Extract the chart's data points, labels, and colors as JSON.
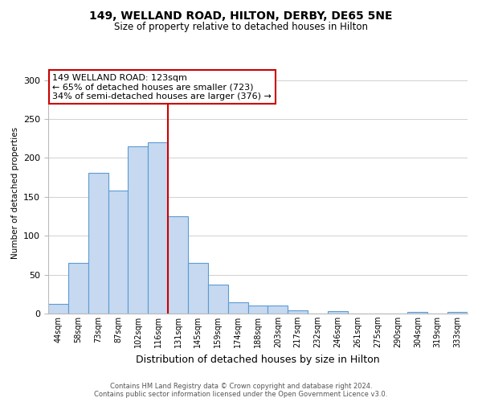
{
  "title": "149, WELLAND ROAD, HILTON, DERBY, DE65 5NE",
  "subtitle": "Size of property relative to detached houses in Hilton",
  "xlabel": "Distribution of detached houses by size in Hilton",
  "ylabel": "Number of detached properties",
  "bar_labels": [
    "44sqm",
    "58sqm",
    "73sqm",
    "87sqm",
    "102sqm",
    "116sqm",
    "131sqm",
    "145sqm",
    "159sqm",
    "174sqm",
    "188sqm",
    "203sqm",
    "217sqm",
    "232sqm",
    "246sqm",
    "261sqm",
    "275sqm",
    "290sqm",
    "304sqm",
    "319sqm",
    "333sqm"
  ],
  "bar_heights": [
    12,
    65,
    181,
    158,
    215,
    220,
    125,
    65,
    37,
    14,
    10,
    10,
    4,
    0,
    3,
    0,
    0,
    0,
    2,
    0,
    2
  ],
  "bar_color": "#c6d9f0",
  "bar_edge_color": "#5b9bd5",
  "vline_x": 5.5,
  "vline_color": "#cc0000",
  "annotation_line1": "149 WELLAND ROAD: 123sqm",
  "annotation_line2": "← 65% of detached houses are smaller (723)",
  "annotation_line3": "34% of semi-detached houses are larger (376) →",
  "annotation_box_color": "#ffffff",
  "annotation_box_edge": "#cc0000",
  "ylim": [
    0,
    310
  ],
  "yticks": [
    0,
    50,
    100,
    150,
    200,
    250,
    300
  ],
  "footer1": "Contains HM Land Registry data © Crown copyright and database right 2024.",
  "footer2": "Contains public sector information licensed under the Open Government Licence v3.0.",
  "background_color": "#ffffff",
  "grid_color": "#d0d0d0",
  "title_fontsize": 10,
  "subtitle_fontsize": 8.5,
  "xlabel_fontsize": 9,
  "ylabel_fontsize": 7.5,
  "tick_fontsize": 7,
  "annotation_fontsize": 8,
  "footer_fontsize": 6
}
